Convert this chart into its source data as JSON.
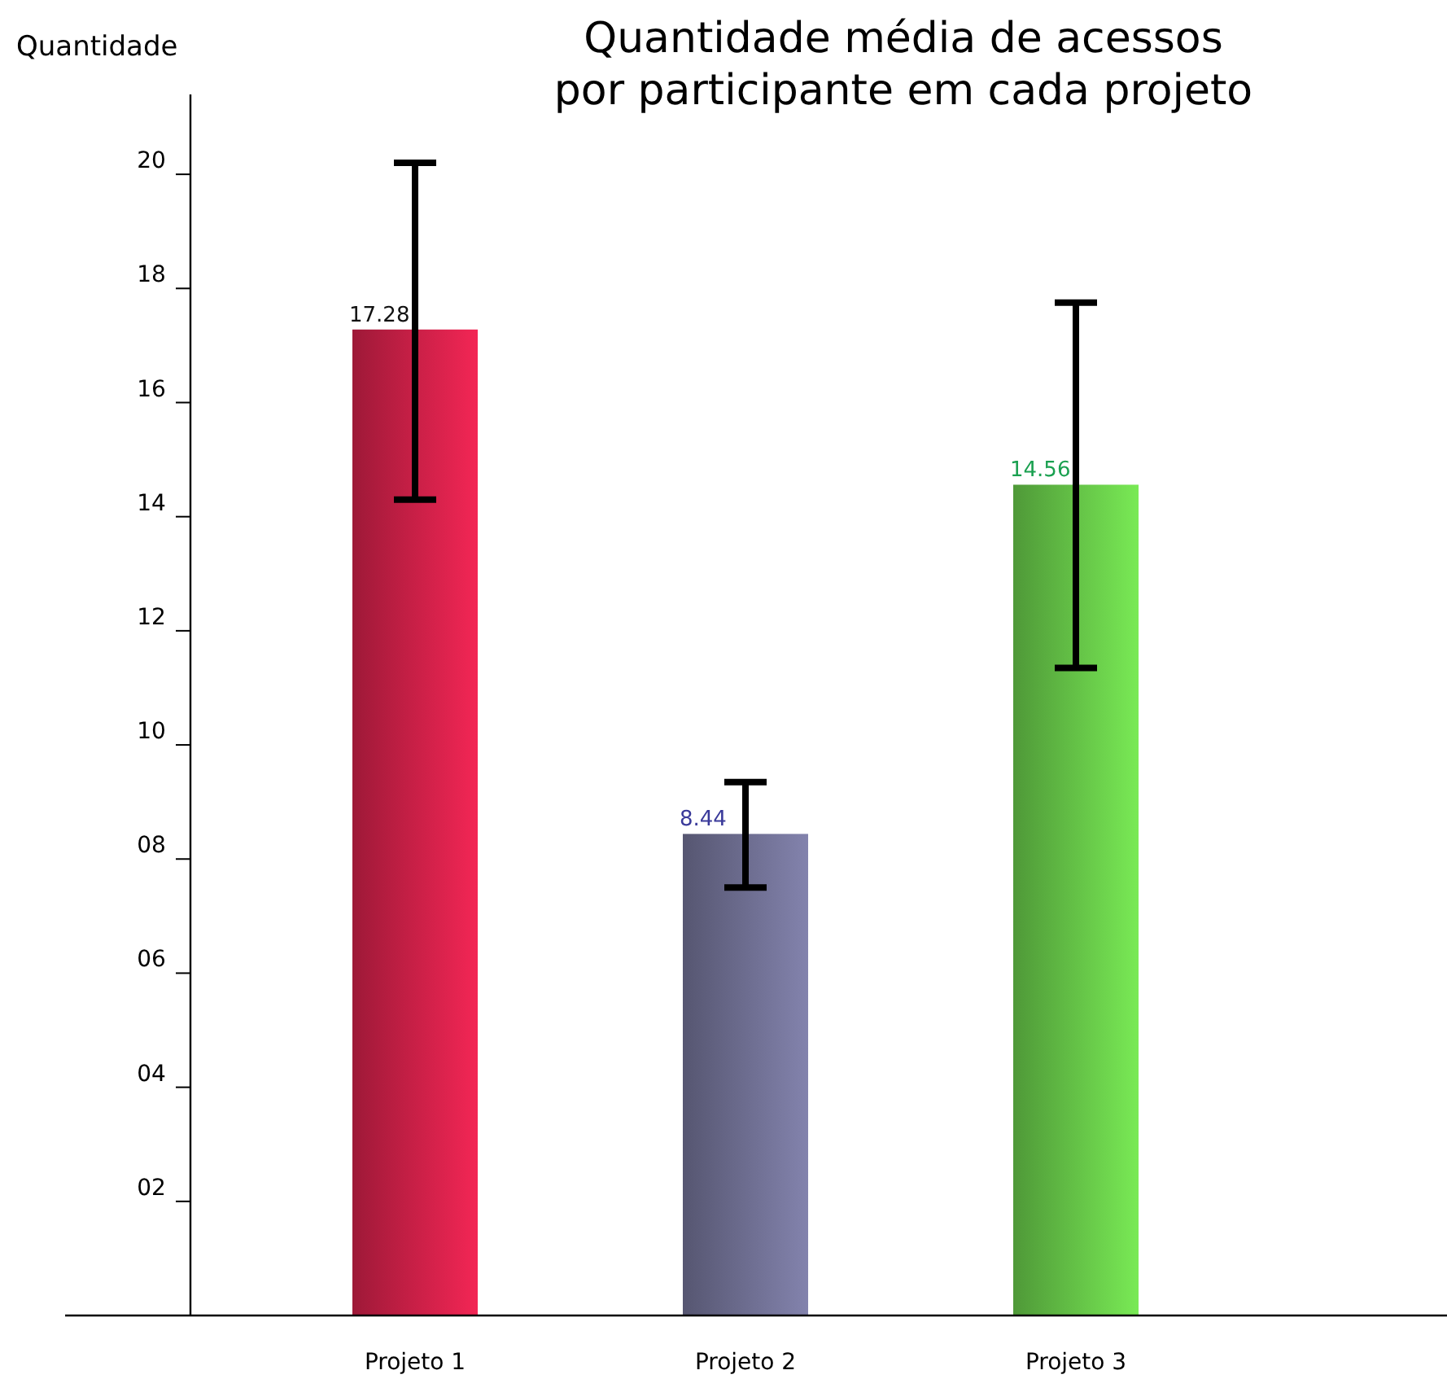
{
  "chart_data": {
    "type": "bar",
    "title": "Quantidade média de acessos\npor participante em cada projeto",
    "ylabel": "Quantidade",
    "categories": [
      "Projeto 1",
      "Projeto 2",
      "Projeto 3"
    ],
    "values": [
      17.28,
      8.44,
      14.56
    ],
    "colors": [
      "#c41f45",
      "#6a6a8c",
      "#62bd45"
    ],
    "errors": [
      [
        14.3,
        20.2
      ],
      [
        7.5,
        9.35
      ],
      [
        11.35,
        17.75
      ]
    ],
    "data_labels": true,
    "ylim": [
      0,
      21.4
    ],
    "yticks": [
      {
        "value": 2,
        "label": "02"
      },
      {
        "value": 4,
        "label": "04"
      },
      {
        "value": 6,
        "label": "06"
      },
      {
        "value": 8,
        "label": "08"
      },
      10,
      12,
      14,
      16,
      18,
      20
    ],
    "grid": false
  }
}
